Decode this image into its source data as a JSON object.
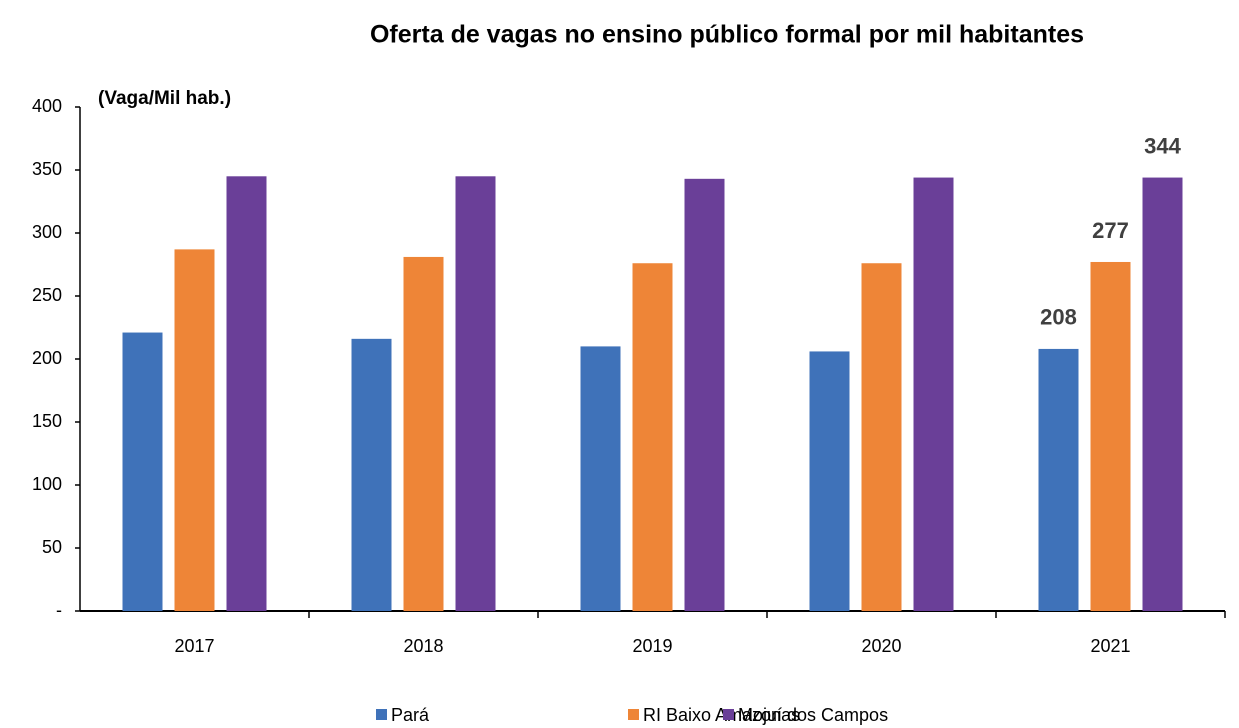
{
  "chart_data": {
    "type": "bar",
    "title": "Oferta de vagas no ensino público formal por mil habitantes",
    "y_axis_label": "(Vaga/Mil hab.)",
    "categories": [
      "2017",
      "2018",
      "2019",
      "2020",
      "2021"
    ],
    "series": [
      {
        "name": "Pará",
        "color": "#3f72b9",
        "values": [
          221,
          216,
          210,
          206,
          208
        ],
        "value_labels": [
          null,
          null,
          null,
          null,
          "208"
        ]
      },
      {
        "name": "RI Baixo Amazonas",
        "color": "#ee8537",
        "values": [
          287,
          281,
          276,
          276,
          277
        ],
        "value_labels": [
          null,
          null,
          null,
          null,
          "277"
        ]
      },
      {
        "name": "Mojuí dos Campos",
        "color": "#6a3f98",
        "values": [
          345,
          345,
          343,
          344,
          344
        ],
        "value_labels": [
          null,
          null,
          null,
          null,
          "344"
        ]
      }
    ],
    "ylim": [
      0,
      400
    ],
    "yticks": [
      {
        "value": 0,
        "label": "-"
      },
      50,
      100,
      150,
      200,
      250,
      300,
      350,
      400
    ],
    "grid": false,
    "legend": "bottom"
  }
}
